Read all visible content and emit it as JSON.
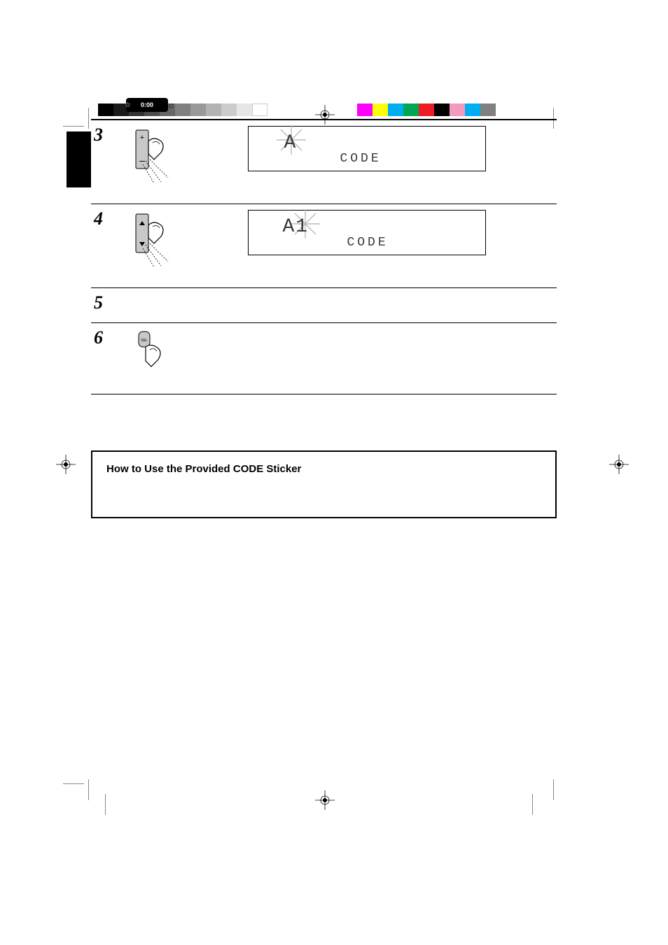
{
  "header": {
    "clock_text": "0:00"
  },
  "steps": {
    "s3": {
      "num": "3",
      "button_top": "+",
      "button_bottom": "–",
      "display_large": "A",
      "display_small": "CODE"
    },
    "s4": {
      "num": "4",
      "button_top": "▴",
      "button_bottom": "▾",
      "display_large": "A1",
      "display_small": "CODE"
    },
    "s5": {
      "num": "5"
    },
    "s6": {
      "num": "6",
      "button_label": "SEL"
    }
  },
  "infobox": {
    "title": "How to Use the Provided CODE Sticker"
  },
  "graybar_colors": [
    "#000000",
    "#1a1a1a",
    "#333333",
    "#4d4d4d",
    "#666666",
    "#808080",
    "#999999",
    "#b3b3b3",
    "#cccccc",
    "#e6e6e6",
    "#ffffff"
  ],
  "colorbar_colors": [
    "#ff00ff",
    "#ffff00",
    "#00aeef",
    "#00a651",
    "#ed1c24",
    "#000000",
    "#f49ac1",
    "#00aeef",
    "#808080"
  ],
  "style": {
    "seg_color": "#3a3a3a"
  }
}
